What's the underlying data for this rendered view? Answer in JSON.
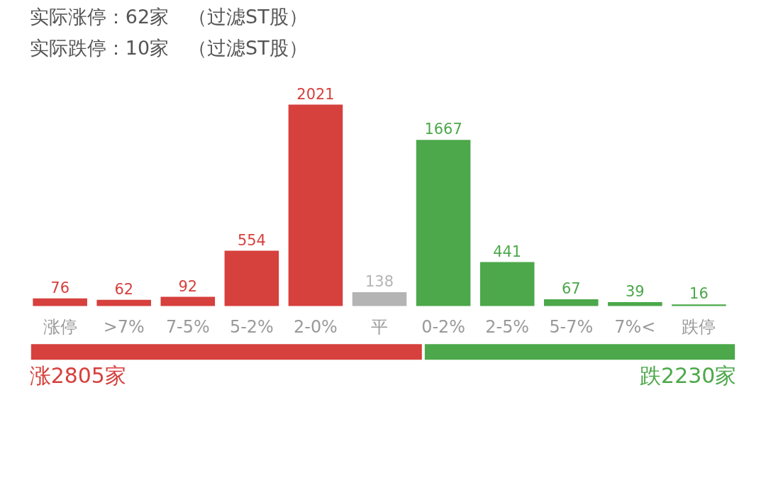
{
  "chart_data": [
    {
      "type": "bar",
      "annotations": [
        "实际涨停：62家　（过滤ST股）",
        "实际跌停：10家　（过滤ST股）"
      ],
      "categories": [
        "涨停",
        ">7%",
        "7-5%",
        "5-2%",
        "2-0%",
        "平",
        "0-2%",
        "2-5%",
        "5-7%",
        "7%<",
        "跌停"
      ],
      "values": [
        76,
        62,
        92,
        554,
        2021,
        138,
        1667,
        441,
        67,
        39,
        16
      ],
      "colors": [
        "#d6403d",
        "#d6403d",
        "#d6403d",
        "#d6403d",
        "#d6403d",
        "#b4b4b4",
        "#4ca84a",
        "#4ca84a",
        "#4ca84a",
        "#4ca84a",
        "#4ca84a"
      ],
      "data_labels": true,
      "grid": false
    },
    {
      "type": "bar",
      "orientation": "horizontal",
      "stacked": true,
      "categories": [
        null
      ],
      "series": [
        {
          "color": "#d6403d",
          "values": [
            2805
          ],
          "value_labels": [
            "涨2805家"
          ]
        },
        {
          "color": "#4ca84a",
          "values": [
            2230
          ],
          "value_labels": [
            "跌2230家"
          ]
        }
      ]
    }
  ]
}
